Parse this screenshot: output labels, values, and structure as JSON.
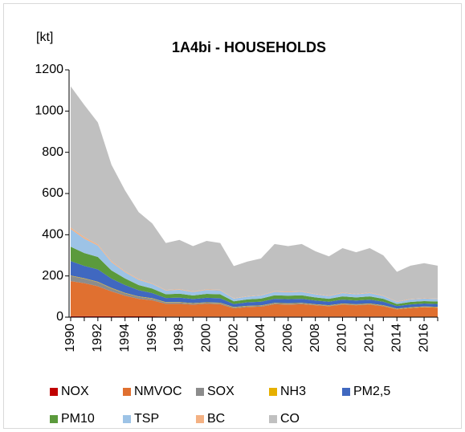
{
  "chart_data": {
    "type": "stacked_area",
    "title": "1A4bi - HOUSEHOLDS",
    "y_label": "[kt]",
    "categories": [
      "1990",
      null,
      "1992",
      null,
      "1994",
      null,
      "1996",
      null,
      "1998",
      null,
      "2000",
      null,
      "2002",
      null,
      "2004",
      null,
      "2006",
      null,
      "2008",
      null,
      "2010",
      null,
      "2012",
      null,
      "2014",
      null,
      "2016",
      null
    ],
    "ylim": [
      0,
      1200
    ],
    "yticks": [
      0,
      200,
      400,
      600,
      800,
      1000,
      1200
    ],
    "grid": false,
    "legend": "bottom",
    "series": [
      {
        "name": "NOX",
        "color": "#c00000",
        "values": [
          5,
          5,
          5,
          5,
          4,
          4,
          4,
          3,
          3,
          3,
          3,
          3,
          3,
          3,
          3,
          3,
          3,
          3,
          3,
          3,
          3,
          3,
          3,
          3,
          2,
          2,
          2,
          2
        ]
      },
      {
        "name": "NMVOC",
        "color": "#e07030",
        "values": [
          170,
          160,
          145,
          120,
          100,
          85,
          78,
          62,
          62,
          58,
          62,
          60,
          40,
          46,
          48,
          60,
          58,
          60,
          55,
          50,
          58,
          55,
          58,
          50,
          36,
          42,
          46,
          44
        ]
      },
      {
        "name": "SOX",
        "color": "#8c8c8c",
        "values": [
          25,
          22,
          20,
          15,
          12,
          10,
          8,
          6,
          6,
          5,
          5,
          5,
          4,
          4,
          4,
          4,
          4,
          4,
          3,
          3,
          3,
          3,
          3,
          3,
          2,
          2,
          2,
          2
        ]
      },
      {
        "name": "NH3",
        "color": "#e6b000",
        "values": [
          2,
          2,
          2,
          2,
          2,
          2,
          2,
          2,
          2,
          2,
          2,
          2,
          2,
          2,
          2,
          2,
          2,
          2,
          2,
          2,
          2,
          2,
          2,
          2,
          2,
          2,
          2,
          2
        ]
      },
      {
        "name": "PM2,5",
        "color": "#4068c0",
        "values": [
          70,
          60,
          60,
          45,
          38,
          30,
          25,
          20,
          22,
          20,
          22,
          22,
          15,
          17,
          18,
          20,
          20,
          20,
          18,
          17,
          19,
          18,
          19,
          17,
          12,
          14,
          14,
          14
        ]
      },
      {
        "name": "PM10",
        "color": "#5b9a3c",
        "values": [
          70,
          62,
          60,
          40,
          32,
          25,
          22,
          18,
          19,
          17,
          19,
          19,
          13,
          14,
          15,
          17,
          17,
          17,
          15,
          14,
          16,
          15,
          16,
          14,
          10,
          12,
          12,
          12
        ]
      },
      {
        "name": "TSP",
        "color": "#9dc3e6",
        "values": [
          85,
          70,
          55,
          40,
          30,
          25,
          22,
          18,
          19,
          17,
          19,
          19,
          13,
          14,
          15,
          17,
          17,
          17,
          15,
          14,
          16,
          15,
          16,
          14,
          10,
          12,
          12,
          12
        ]
      },
      {
        "name": "BC",
        "color": "#f4b183",
        "values": [
          8,
          7,
          6,
          5,
          4,
          4,
          3,
          3,
          3,
          3,
          3,
          3,
          2,
          2,
          2,
          3,
          3,
          3,
          2,
          2,
          3,
          2,
          3,
          2,
          2,
          2,
          2,
          2
        ]
      },
      {
        "name": "CO",
        "color": "#c0c0c0",
        "values": [
          685,
          642,
          592,
          468,
          393,
          325,
          291,
          228,
          239,
          220,
          235,
          227,
          156,
          168,
          178,
          229,
          221,
          229,
          207,
          190,
          215,
          202,
          215,
          195,
          144,
          162,
          170,
          160
        ]
      }
    ]
  }
}
